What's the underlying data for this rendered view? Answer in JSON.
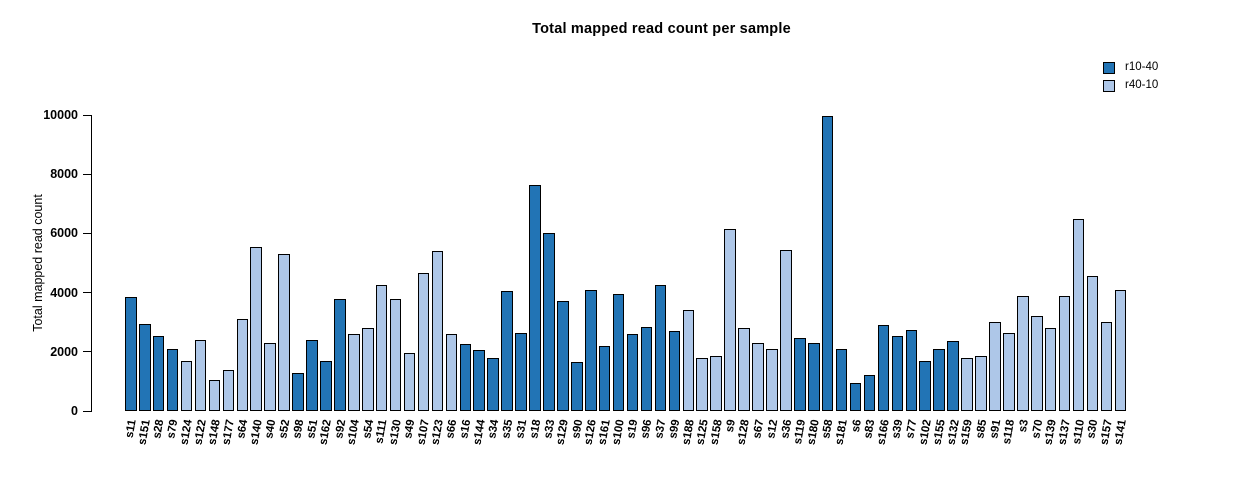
{
  "title": "Total mapped read count per sample",
  "ylabel": "Total mapped read count",
  "colors": {
    "r10-40": "#2274b5",
    "r40-10": "#aec7e8",
    "bar_border": "#000000",
    "background": "#ffffff"
  },
  "legend": [
    {
      "label": "r10-40",
      "series": "r10-40"
    },
    {
      "label": "r40-10",
      "series": "r40-10"
    }
  ],
  "chart_data": {
    "type": "bar",
    "title": "Total mapped read count per sample",
    "xlabel": "",
    "ylabel": "Total mapped read count",
    "ylim": [
      0,
      10000
    ],
    "yticks": [
      0,
      2000,
      4000,
      6000,
      8000,
      10000
    ],
    "grid": false,
    "legend_position": "top-right",
    "legend_entries": [
      "r10-40",
      "r40-10"
    ],
    "samples": [
      {
        "label": "s11",
        "value": 3850,
        "series": "r10-40"
      },
      {
        "label": "s151",
        "value": 2950,
        "series": "r10-40"
      },
      {
        "label": "s28",
        "value": 2550,
        "series": "r10-40"
      },
      {
        "label": "s79",
        "value": 2100,
        "series": "r10-40"
      },
      {
        "label": "s124",
        "value": 1700,
        "series": "r40-10"
      },
      {
        "label": "s122",
        "value": 2400,
        "series": "r40-10"
      },
      {
        "label": "s148",
        "value": 1050,
        "series": "r40-10"
      },
      {
        "label": "s177",
        "value": 1400,
        "series": "r40-10"
      },
      {
        "label": "s64",
        "value": 3100,
        "series": "r40-10"
      },
      {
        "label": "s140",
        "value": 5550,
        "series": "r40-10"
      },
      {
        "label": "s40",
        "value": 2300,
        "series": "r40-10"
      },
      {
        "label": "s52",
        "value": 5300,
        "series": "r40-10"
      },
      {
        "label": "s98",
        "value": 1300,
        "series": "r10-40"
      },
      {
        "label": "s51",
        "value": 2400,
        "series": "r10-40"
      },
      {
        "label": "s162",
        "value": 1700,
        "series": "r10-40"
      },
      {
        "label": "s92",
        "value": 3800,
        "series": "r10-40"
      },
      {
        "label": "s104",
        "value": 2600,
        "series": "r40-10"
      },
      {
        "label": "s54",
        "value": 2800,
        "series": "r40-10"
      },
      {
        "label": "s111",
        "value": 4250,
        "series": "r40-10"
      },
      {
        "label": "s130",
        "value": 3800,
        "series": "r40-10"
      },
      {
        "label": "s49",
        "value": 1950,
        "series": "r40-10"
      },
      {
        "label": "s107",
        "value": 4650,
        "series": "r40-10"
      },
      {
        "label": "s123",
        "value": 5400,
        "series": "r40-10"
      },
      {
        "label": "s66",
        "value": 2600,
        "series": "r40-10"
      },
      {
        "label": "s16",
        "value": 2250,
        "series": "r10-40"
      },
      {
        "label": "s144",
        "value": 2050,
        "series": "r10-40"
      },
      {
        "label": "s34",
        "value": 1800,
        "series": "r10-40"
      },
      {
        "label": "s35",
        "value": 4050,
        "series": "r10-40"
      },
      {
        "label": "s31",
        "value": 2650,
        "series": "r10-40"
      },
      {
        "label": "s18",
        "value": 7650,
        "series": "r10-40"
      },
      {
        "label": "s33",
        "value": 6000,
        "series": "r10-40"
      },
      {
        "label": "s129",
        "value": 3700,
        "series": "r10-40"
      },
      {
        "label": "s90",
        "value": 1650,
        "series": "r10-40"
      },
      {
        "label": "s126",
        "value": 4100,
        "series": "r10-40"
      },
      {
        "label": "s161",
        "value": 2200,
        "series": "r10-40"
      },
      {
        "label": "s100",
        "value": 3950,
        "series": "r10-40"
      },
      {
        "label": "s19",
        "value": 2600,
        "series": "r10-40"
      },
      {
        "label": "s96",
        "value": 2850,
        "series": "r10-40"
      },
      {
        "label": "s37",
        "value": 4250,
        "series": "r10-40"
      },
      {
        "label": "s99",
        "value": 2700,
        "series": "r10-40"
      },
      {
        "label": "s188",
        "value": 3400,
        "series": "r40-10"
      },
      {
        "label": "s125",
        "value": 1800,
        "series": "r40-10"
      },
      {
        "label": "s158",
        "value": 1850,
        "series": "r40-10"
      },
      {
        "label": "s9",
        "value": 6150,
        "series": "r40-10"
      },
      {
        "label": "s128",
        "value": 2800,
        "series": "r40-10"
      },
      {
        "label": "s67",
        "value": 2300,
        "series": "r40-10"
      },
      {
        "label": "s12",
        "value": 2100,
        "series": "r40-10"
      },
      {
        "label": "s36",
        "value": 5450,
        "series": "r40-10"
      },
      {
        "label": "s119",
        "value": 2450,
        "series": "r10-40"
      },
      {
        "label": "s180",
        "value": 2300,
        "series": "r10-40"
      },
      {
        "label": "s58",
        "value": 9950,
        "series": "r10-40"
      },
      {
        "label": "s181",
        "value": 2100,
        "series": "r10-40"
      },
      {
        "label": "s6",
        "value": 950,
        "series": "r10-40"
      },
      {
        "label": "s83",
        "value": 1200,
        "series": "r10-40"
      },
      {
        "label": "s166",
        "value": 2900,
        "series": "r10-40"
      },
      {
        "label": "s39",
        "value": 2550,
        "series": "r10-40"
      },
      {
        "label": "s77",
        "value": 2750,
        "series": "r10-40"
      },
      {
        "label": "s102",
        "value": 1700,
        "series": "r10-40"
      },
      {
        "label": "s155",
        "value": 2100,
        "series": "r10-40"
      },
      {
        "label": "s132",
        "value": 2350,
        "series": "r10-40"
      },
      {
        "label": "s159",
        "value": 1800,
        "series": "r40-10"
      },
      {
        "label": "s85",
        "value": 1850,
        "series": "r40-10"
      },
      {
        "label": "s91",
        "value": 3000,
        "series": "r40-10"
      },
      {
        "label": "s118",
        "value": 2650,
        "series": "r40-10"
      },
      {
        "label": "s3",
        "value": 3900,
        "series": "r40-10"
      },
      {
        "label": "s70",
        "value": 3200,
        "series": "r40-10"
      },
      {
        "label": "s139",
        "value": 2800,
        "series": "r40-10"
      },
      {
        "label": "s137",
        "value": 3900,
        "series": "r40-10"
      },
      {
        "label": "s110",
        "value": 6500,
        "series": "r40-10"
      },
      {
        "label": "s30",
        "value": 4550,
        "series": "r40-10"
      },
      {
        "label": "s157",
        "value": 3000,
        "series": "r40-10"
      },
      {
        "label": "s141",
        "value": 4100,
        "series": "r40-10"
      }
    ]
  }
}
